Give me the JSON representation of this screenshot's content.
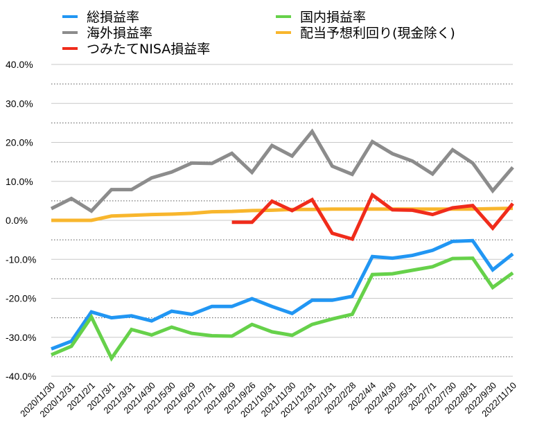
{
  "chart_data": {
    "type": "line",
    "title": "",
    "xlabel": "",
    "ylabel": "",
    "ylim": [
      -40,
      40
    ],
    "y_ticks": [
      "40.0%",
      "30.0%",
      "20.0%",
      "10.0%",
      "0.0%",
      "-10.0%",
      "-20.0%",
      "-30.0%",
      "-40.0%"
    ],
    "grid": "solid at 10% steps, dotted at 5% midpoints",
    "legend_placement": "top",
    "categories": [
      "2020/11/30",
      "2020/12/31",
      "2021/2/1",
      "2021/3/1",
      "2021/3/31",
      "2021/4/30",
      "2021/5/30",
      "2021/6/29",
      "2021/7/31",
      "2021/8/29",
      "2021/9/26",
      "2021/10/31",
      "2021/11/30",
      "2021/12/31",
      "2022/1/31",
      "2022/2/28",
      "2022/4/4",
      "2022/4/30",
      "2022/5/31",
      "2022/7/1",
      "2022/7/30",
      "2022/8/31",
      "2022/9/30",
      "2022/11/10"
    ],
    "series": [
      {
        "name": "総損益率",
        "color": "#2196F3",
        "values": [
          -33.0,
          -31.0,
          -23.5,
          -25.0,
          -24.5,
          -25.8,
          -23.3,
          -24.1,
          -22.1,
          -22.1,
          -20.1,
          -22.1,
          -23.9,
          -20.5,
          -20.5,
          -19.5,
          -9.3,
          -9.7,
          -9.0,
          -7.7,
          -5.4,
          -5.2,
          -12.7,
          -8.6
        ]
      },
      {
        "name": "国内損益率",
        "color": "#66D14A",
        "values": [
          -34.5,
          -32.3,
          -24.8,
          -35.4,
          -28.0,
          -29.4,
          -27.4,
          -29.0,
          -29.6,
          -29.7,
          -26.7,
          -28.6,
          -29.5,
          -26.7,
          -25.3,
          -24.1,
          -13.9,
          -13.7,
          -12.8,
          -11.9,
          -9.8,
          -9.7,
          -17.2,
          -13.5
        ]
      },
      {
        "name": "海外損益率",
        "color": "#8C8C8C",
        "values": [
          3.0,
          5.6,
          2.4,
          7.9,
          7.9,
          10.9,
          12.4,
          14.7,
          14.6,
          17.2,
          12.3,
          19.2,
          16.5,
          22.8,
          13.9,
          11.8,
          20.2,
          17.1,
          15.2,
          11.9,
          18.1,
          14.7,
          7.6,
          13.6
        ]
      },
      {
        "name": "配当予想利回り(現金除く)",
        "color": "#F8B62D",
        "values": [
          0.0,
          0.0,
          0.0,
          1.1,
          1.3,
          1.5,
          1.6,
          1.8,
          2.2,
          2.3,
          2.5,
          2.6,
          2.8,
          2.8,
          2.9,
          2.9,
          2.9,
          2.9,
          2.9,
          2.9,
          2.9,
          2.9,
          3.0,
          3.1
        ]
      },
      {
        "name": "つみたてNISA損益率",
        "color": "#F02C1B",
        "values": [
          null,
          null,
          null,
          null,
          null,
          null,
          null,
          null,
          null,
          -0.5,
          -0.5,
          4.9,
          2.5,
          5.3,
          -3.3,
          -4.8,
          6.5,
          2.7,
          2.6,
          1.5,
          3.2,
          3.8,
          -2.0,
          4.3
        ]
      }
    ]
  },
  "legend": [
    {
      "name": "総損益率",
      "color": "#2196F3"
    },
    {
      "name": "国内損益率",
      "color": "#66D14A"
    },
    {
      "name": "海外損益率",
      "color": "#8C8C8C"
    },
    {
      "name": "配当予想利回り(現金除く)",
      "color": "#F8B62D"
    },
    {
      "name": "つみたてNISA損益率",
      "color": "#F02C1B"
    }
  ]
}
